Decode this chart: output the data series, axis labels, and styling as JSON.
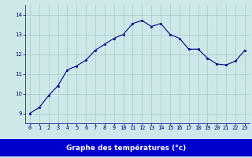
{
  "hours": [
    0,
    1,
    2,
    3,
    4,
    5,
    6,
    7,
    8,
    9,
    10,
    11,
    12,
    13,
    14,
    15,
    16,
    17,
    18,
    19,
    20,
    21,
    22,
    23
  ],
  "temps": [
    9.0,
    9.3,
    9.9,
    10.4,
    11.2,
    11.4,
    11.7,
    12.2,
    12.5,
    12.8,
    13.0,
    13.55,
    13.7,
    13.4,
    13.55,
    13.0,
    12.8,
    12.25,
    12.25,
    11.8,
    11.5,
    11.45,
    11.65,
    12.2
  ],
  "line_color": "#00008b",
  "marker_color": "#00008b",
  "bg_color": "#cce8e8",
  "grid_color": "#aac8c8",
  "xlabel": "Graphe des températures (°c)",
  "xlabel_bar_color": "#0000cc",
  "xlabel_text_color": "#ffffff",
  "ylim": [
    8.5,
    14.5
  ],
  "xlim": [
    -0.5,
    23.5
  ],
  "yticks": [
    9,
    10,
    11,
    12,
    13,
    14
  ],
  "xticks": [
    0,
    1,
    2,
    3,
    4,
    5,
    6,
    7,
    8,
    9,
    10,
    11,
    12,
    13,
    14,
    15,
    16,
    17,
    18,
    19,
    20,
    21,
    22,
    23
  ],
  "tick_color": "#00008b",
  "tick_fontsize": 5.0,
  "label_fontsize": 6.5,
  "linewidth": 0.8,
  "markersize": 2.0
}
